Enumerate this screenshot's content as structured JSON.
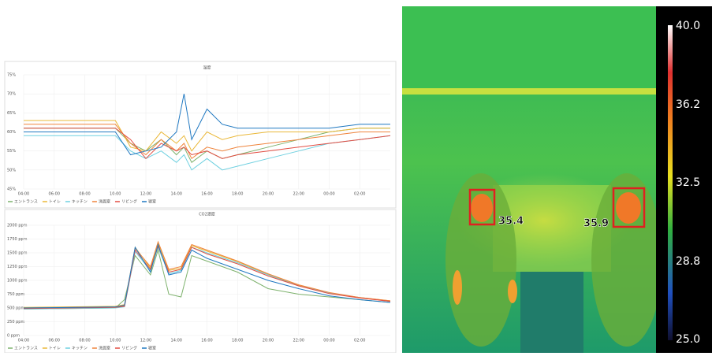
{
  "chart_data": [
    {
      "type": "line",
      "title": "湿度",
      "x": [
        4,
        8,
        10,
        11,
        12,
        13,
        14,
        14.5,
        15,
        16,
        17,
        18,
        20,
        22,
        24,
        26,
        28
      ],
      "xlim": [
        4,
        28
      ],
      "xticks": [
        {
          "value": 4,
          "label": "04:00"
        },
        {
          "value": 6,
          "label": "06:00"
        },
        {
          "value": 8,
          "label": "08:00"
        },
        {
          "value": 10,
          "label": "10:00"
        },
        {
          "value": 12,
          "label": "12:00"
        },
        {
          "value": 14,
          "label": "14:00"
        },
        {
          "value": 16,
          "label": "16:00"
        },
        {
          "value": 18,
          "label": "18:00"
        },
        {
          "value": 20,
          "label": "20:00"
        },
        {
          "value": 22,
          "label": "22:00"
        },
        {
          "value": 24,
          "label": "00:00"
        },
        {
          "value": 26,
          "label": "02:00"
        }
      ],
      "ylim": [
        45,
        75
      ],
      "yticks": [
        {
          "value": 45,
          "label": "45%"
        },
        {
          "value": 50,
          "label": "50%"
        },
        {
          "value": 55,
          "label": "55%"
        },
        {
          "value": 60,
          "label": "60%"
        },
        {
          "value": 65,
          "label": "65%"
        },
        {
          "value": 70,
          "label": "70%"
        },
        {
          "value": 75,
          "label": "75%"
        }
      ],
      "grid": true,
      "series": [
        {
          "name": "エントランス",
          "color": "#7eb26d",
          "values": [
            61,
            61,
            61,
            57,
            55,
            58,
            54,
            56,
            52,
            55,
            53,
            54,
            56,
            58,
            60,
            61,
            61
          ]
        },
        {
          "name": "トイレ",
          "color": "#eab839",
          "values": [
            63,
            63,
            63,
            56,
            55,
            60,
            57,
            59,
            55,
            60,
            58,
            59,
            60,
            60,
            60,
            61,
            61
          ]
        },
        {
          "name": "キッチン",
          "color": "#6ed0e0",
          "values": [
            59,
            59,
            59,
            55,
            53,
            55,
            52,
            54,
            50,
            53,
            50,
            51,
            53,
            55,
            57,
            58,
            59
          ]
        },
        {
          "name": "洗面室",
          "color": "#ef843c",
          "values": [
            62,
            62,
            62,
            57,
            54,
            58,
            55,
            57,
            53,
            56,
            55,
            56,
            57,
            58,
            59,
            60,
            60
          ]
        },
        {
          "name": "リビング",
          "color": "#e24d42",
          "values": [
            61,
            61,
            61,
            58,
            53,
            57,
            55,
            56,
            54,
            55,
            53,
            54,
            55,
            56,
            57,
            58,
            59
          ]
        },
        {
          "name": "寝室",
          "color": "#1f78c1",
          "values": [
            60,
            60,
            60,
            54,
            55,
            56,
            60,
            70,
            58,
            66,
            62,
            61,
            61,
            61,
            61,
            62,
            62
          ]
        }
      ]
    },
    {
      "type": "line",
      "title": "CO2濃度",
      "x": [
        4,
        10,
        10.6,
        11.3,
        12.3,
        12.8,
        13.5,
        14.3,
        15,
        16,
        18,
        20,
        22,
        24,
        26,
        28
      ],
      "xlim": [
        4,
        28
      ],
      "xticks": [
        {
          "value": 4,
          "label": "04:00"
        },
        {
          "value": 6,
          "label": "06:00"
        },
        {
          "value": 8,
          "label": "08:00"
        },
        {
          "value": 10,
          "label": "10:00"
        },
        {
          "value": 12,
          "label": "12:00"
        },
        {
          "value": 14,
          "label": "14:00"
        },
        {
          "value": 16,
          "label": "16:00"
        },
        {
          "value": 18,
          "label": "18:00"
        },
        {
          "value": 20,
          "label": "20:00"
        },
        {
          "value": 22,
          "label": "22:00"
        },
        {
          "value": 24,
          "label": "00:00"
        },
        {
          "value": 26,
          "label": "02:00"
        }
      ],
      "ylim": [
        0,
        2000
      ],
      "yticks": [
        {
          "value": 0,
          "label": "0 ppm"
        },
        {
          "value": 250,
          "label": "250 ppm"
        },
        {
          "value": 500,
          "label": "500 ppm"
        },
        {
          "value": 750,
          "label": "750 ppm"
        },
        {
          "value": 1000,
          "label": "1000 ppm"
        },
        {
          "value": 1250,
          "label": "1250 ppm"
        },
        {
          "value": 1500,
          "label": "1500 ppm"
        },
        {
          "value": 1750,
          "label": "1750 ppm"
        },
        {
          "value": 2000,
          "label": "2000 ppm"
        }
      ],
      "grid": true,
      "series": [
        {
          "name": "エントランス",
          "color": "#7eb26d",
          "values": [
            480,
            500,
            650,
            1450,
            1100,
            1550,
            750,
            700,
            1450,
            1350,
            1150,
            850,
            750,
            700,
            650,
            600
          ]
        },
        {
          "name": "トイレ",
          "color": "#eab839",
          "values": [
            510,
            530,
            560,
            1600,
            1220,
            1680,
            1180,
            1220,
            1630,
            1530,
            1340,
            1110,
            910,
            770,
            690,
            630
          ]
        },
        {
          "name": "キッチン",
          "color": "#6ed0e0",
          "values": [
            480,
            500,
            520,
            1520,
            1180,
            1600,
            1120,
            1180,
            1600,
            1500,
            1320,
            1100,
            900,
            770,
            690,
            620
          ]
        },
        {
          "name": "洗面室",
          "color": "#ef843c",
          "values": [
            500,
            520,
            540,
            1580,
            1250,
            1700,
            1200,
            1250,
            1650,
            1550,
            1350,
            1120,
            920,
            780,
            690,
            630
          ]
        },
        {
          "name": "リビング",
          "color": "#e24d42",
          "values": [
            490,
            510,
            530,
            1550,
            1200,
            1620,
            1150,
            1200,
            1600,
            1480,
            1300,
            1080,
            900,
            760,
            680,
            620
          ]
        },
        {
          "name": "寝室",
          "color": "#1f78c1",
          "values": [
            500,
            520,
            550,
            1600,
            1150,
            1650,
            1100,
            1150,
            1550,
            1400,
            1200,
            1000,
            850,
            720,
            650,
            600
          ]
        }
      ]
    }
  ],
  "thermal": {
    "scale_labels": [
      "40.0",
      "36.2",
      "32.5",
      "28.8",
      "25.0"
    ],
    "spots": [
      {
        "label": "35.4"
      },
      {
        "label": "35.9"
      }
    ]
  }
}
